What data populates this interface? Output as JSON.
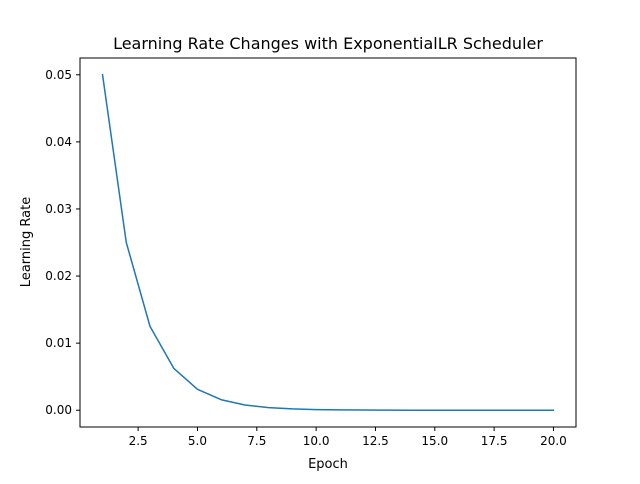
{
  "chart_data": {
    "type": "line",
    "title": "Learning Rate Changes with ExponentialLR Scheduler",
    "xlabel": "Epoch",
    "ylabel": "Learning Rate",
    "x_ticks": [
      2.5,
      5.0,
      7.5,
      10.0,
      12.5,
      15.0,
      17.5,
      20.0
    ],
    "x_tick_labels": [
      "2.5",
      "5.0",
      "7.5",
      "10.0",
      "12.5",
      "15.0",
      "17.5",
      "20.0"
    ],
    "y_ticks": [
      0.0,
      0.01,
      0.02,
      0.03,
      0.04,
      0.05
    ],
    "y_tick_labels": [
      "0.00",
      "0.01",
      "0.02",
      "0.03",
      "0.04",
      "0.05"
    ],
    "xlim": [
      0.05,
      20.95
    ],
    "ylim": [
      -0.0025,
      0.0525
    ],
    "grid": false,
    "series": [
      {
        "color": "#1f77b4",
        "x": [
          1,
          2,
          3,
          4,
          5,
          6,
          7,
          8,
          9,
          10,
          11,
          12,
          13,
          14,
          15,
          16,
          17,
          18,
          19,
          20
        ],
        "y": [
          0.05,
          0.025,
          0.0125,
          0.00625,
          0.003125,
          0.0015625,
          0.00078125,
          0.000390625,
          0.0001953125,
          9.765625e-05,
          4.8828125e-05,
          2.44140625e-05,
          1.220703125e-05,
          6.103515625e-06,
          3.0517578125e-06,
          1.52587890625e-06,
          7.62939453125e-07,
          3.814697265625e-07,
          1.9073486328125e-07,
          9.5367431640625e-08
        ]
      }
    ]
  }
}
